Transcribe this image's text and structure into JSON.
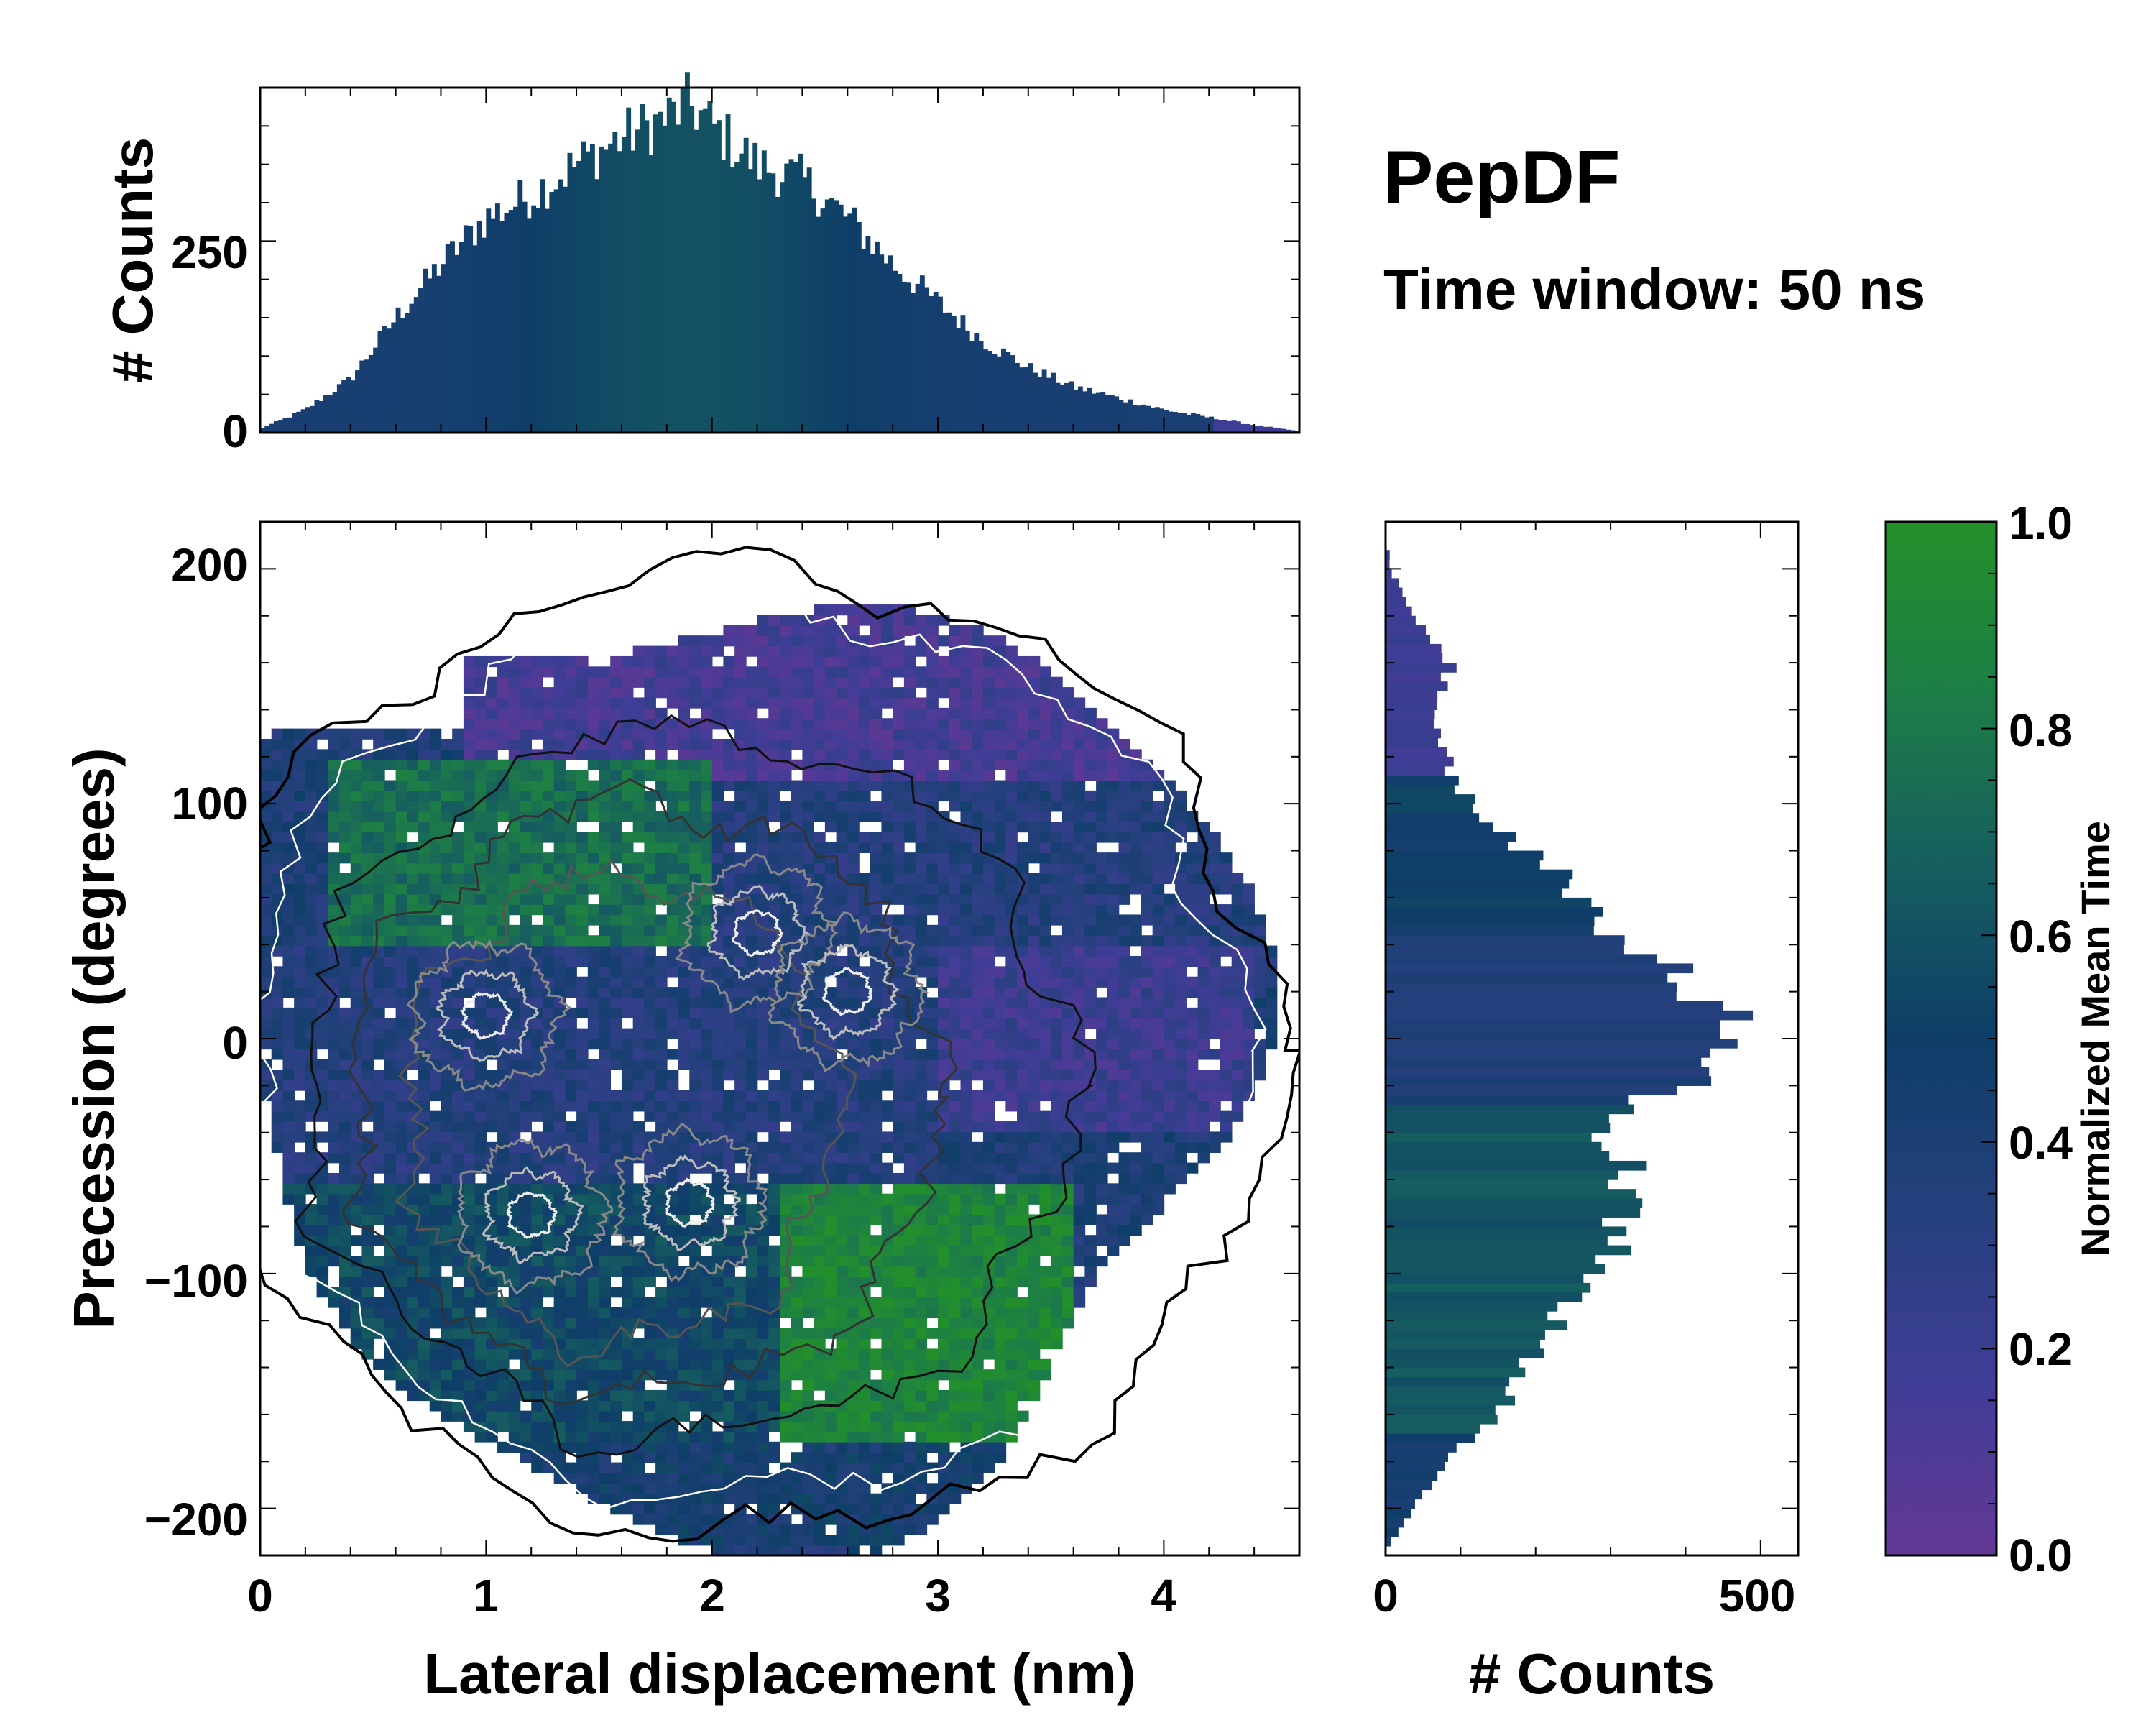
{
  "chart_data": [
    {
      "id": "top_hist",
      "type": "bar",
      "title": "",
      "xlabel": "",
      "ylabel": "# Counts",
      "xlim": [
        0,
        4.6
      ],
      "ylim": [
        0,
        450
      ],
      "yticks": [
        0,
        250
      ],
      "x_bin_width": 0.02,
      "note": "Histogram of lateral displacement; counts rise from ~0 at x=0 to a peak of ~430 near x=1.9 nm, shoulder ~330 near 2.4 nm, decaying to ~0 by 4.6 nm.",
      "envelope": {
        "x": [
          0.0,
          0.2,
          0.4,
          0.6,
          0.8,
          1.0,
          1.2,
          1.4,
          1.6,
          1.8,
          1.9,
          2.0,
          2.2,
          2.4,
          2.6,
          2.8,
          3.0,
          3.2,
          3.4,
          3.6,
          3.8,
          4.0,
          4.2,
          4.4,
          4.6
        ],
        "counts": [
          5,
          30,
          70,
          150,
          220,
          280,
          310,
          350,
          385,
          410,
          430,
          400,
          350,
          330,
          280,
          220,
          170,
          120,
          85,
          60,
          45,
          30,
          20,
          10,
          2
        ]
      },
      "bar_color_value": 0.5
    },
    {
      "id": "main_2d",
      "type": "heatmap",
      "xlabel": "Lateral displacement (nm)",
      "ylabel": "Precession (degrees)",
      "xlim": [
        0,
        4.6
      ],
      "ylim": [
        -220,
        220
      ],
      "xticks": [
        "0",
        "1",
        "2",
        "3",
        "4"
      ],
      "yticks": [
        "200",
        "100",
        "0",
        "−100",
        "−200"
      ],
      "ytick_values": [
        200,
        100,
        0,
        -100,
        -200
      ],
      "color_meaning": "Normalized Mean Time",
      "note": "2D histogram colored by normalized mean time with density contours; upper region (precession > 120) mostly purple (~0.1-0.2), left-center green (~0.8), centre blue (~0.4-0.5), lower-right green (~0.9).",
      "regions": [
        {
          "x": [
            0.9,
            4.5
          ],
          "y": [
            110,
            205
          ],
          "value": 0.15
        },
        {
          "x": [
            0.3,
            2.0
          ],
          "y": [
            40,
            120
          ],
          "value": 0.75
        },
        {
          "x": [
            2.0,
            4.5
          ],
          "y": [
            20,
            110
          ],
          "value": 0.35
        },
        {
          "x": [
            0.0,
            3.0
          ],
          "y": [
            -60,
            40
          ],
          "value": 0.35
        },
        {
          "x": [
            3.0,
            4.4
          ],
          "y": [
            -40,
            40
          ],
          "value": 0.2
        },
        {
          "x": [
            2.3,
            3.6
          ],
          "y": [
            -170,
            -60
          ],
          "value": 0.9
        },
        {
          "x": [
            0.0,
            2.3
          ],
          "y": [
            -180,
            -60
          ],
          "value": 0.55
        },
        {
          "x": [
            0.8,
            3.3
          ],
          "y": [
            -215,
            -170
          ],
          "value": 0.45
        }
      ],
      "density_peaks": [
        {
          "x": 1.2,
          "y": -75
        },
        {
          "x": 1.9,
          "y": -70
        },
        {
          "x": 1.0,
          "y": 10
        },
        {
          "x": 2.2,
          "y": 45
        },
        {
          "x": 2.6,
          "y": 20
        }
      ]
    },
    {
      "id": "right_hist",
      "type": "bar",
      "orientation": "horizontal",
      "xlabel": "# Counts",
      "ylabel": "",
      "xlim": [
        0,
        550
      ],
      "ylim": [
        -220,
        220
      ],
      "xticks": [
        0,
        500
      ],
      "y_bin_width": 4,
      "note": "Histogram of precession; peak ~500 counts near 0 degrees, secondary peak ~330 near -70 degrees, small bump ~100 near 150 degrees.",
      "envelope": {
        "y": [
          -215,
          -200,
          -180,
          -160,
          -140,
          -120,
          -100,
          -80,
          -70,
          -60,
          -40,
          -20,
          0,
          20,
          40,
          60,
          80,
          100,
          120,
          140,
          160,
          180,
          200
        ],
        "counts": [
          5,
          40,
          80,
          140,
          190,
          230,
          270,
          320,
          330,
          320,
          300,
          380,
          500,
          420,
          330,
          270,
          180,
          110,
          80,
          60,
          90,
          40,
          5
        ]
      },
      "bar_color_value": 0.5
    }
  ],
  "labels": {
    "title": "PepDF",
    "subtitle": "Time window: 50 ns",
    "top_ylabel": "# Counts",
    "main_xlabel": "Lateral displacement (nm)",
    "main_ylabel": "Precession (degrees)",
    "right_xlabel": "# Counts",
    "colorbar_label": "Normalized Mean Time",
    "top_yticks": [
      "0",
      "250"
    ],
    "right_xticks": [
      "0",
      "500"
    ],
    "colorbar_ticks": [
      "0.0",
      "0.2",
      "0.4",
      "0.6",
      "0.8",
      "1.0"
    ]
  },
  "colorbar": {
    "range": [
      0.0,
      1.0
    ],
    "ticks": [
      0.0,
      0.2,
      0.4,
      0.6,
      0.8,
      1.0
    ],
    "colors": [
      "#633895",
      "#3f3d96",
      "#26407e",
      "#0e3e68",
      "#165e5f",
      "#1d7d47",
      "#22902a"
    ]
  }
}
